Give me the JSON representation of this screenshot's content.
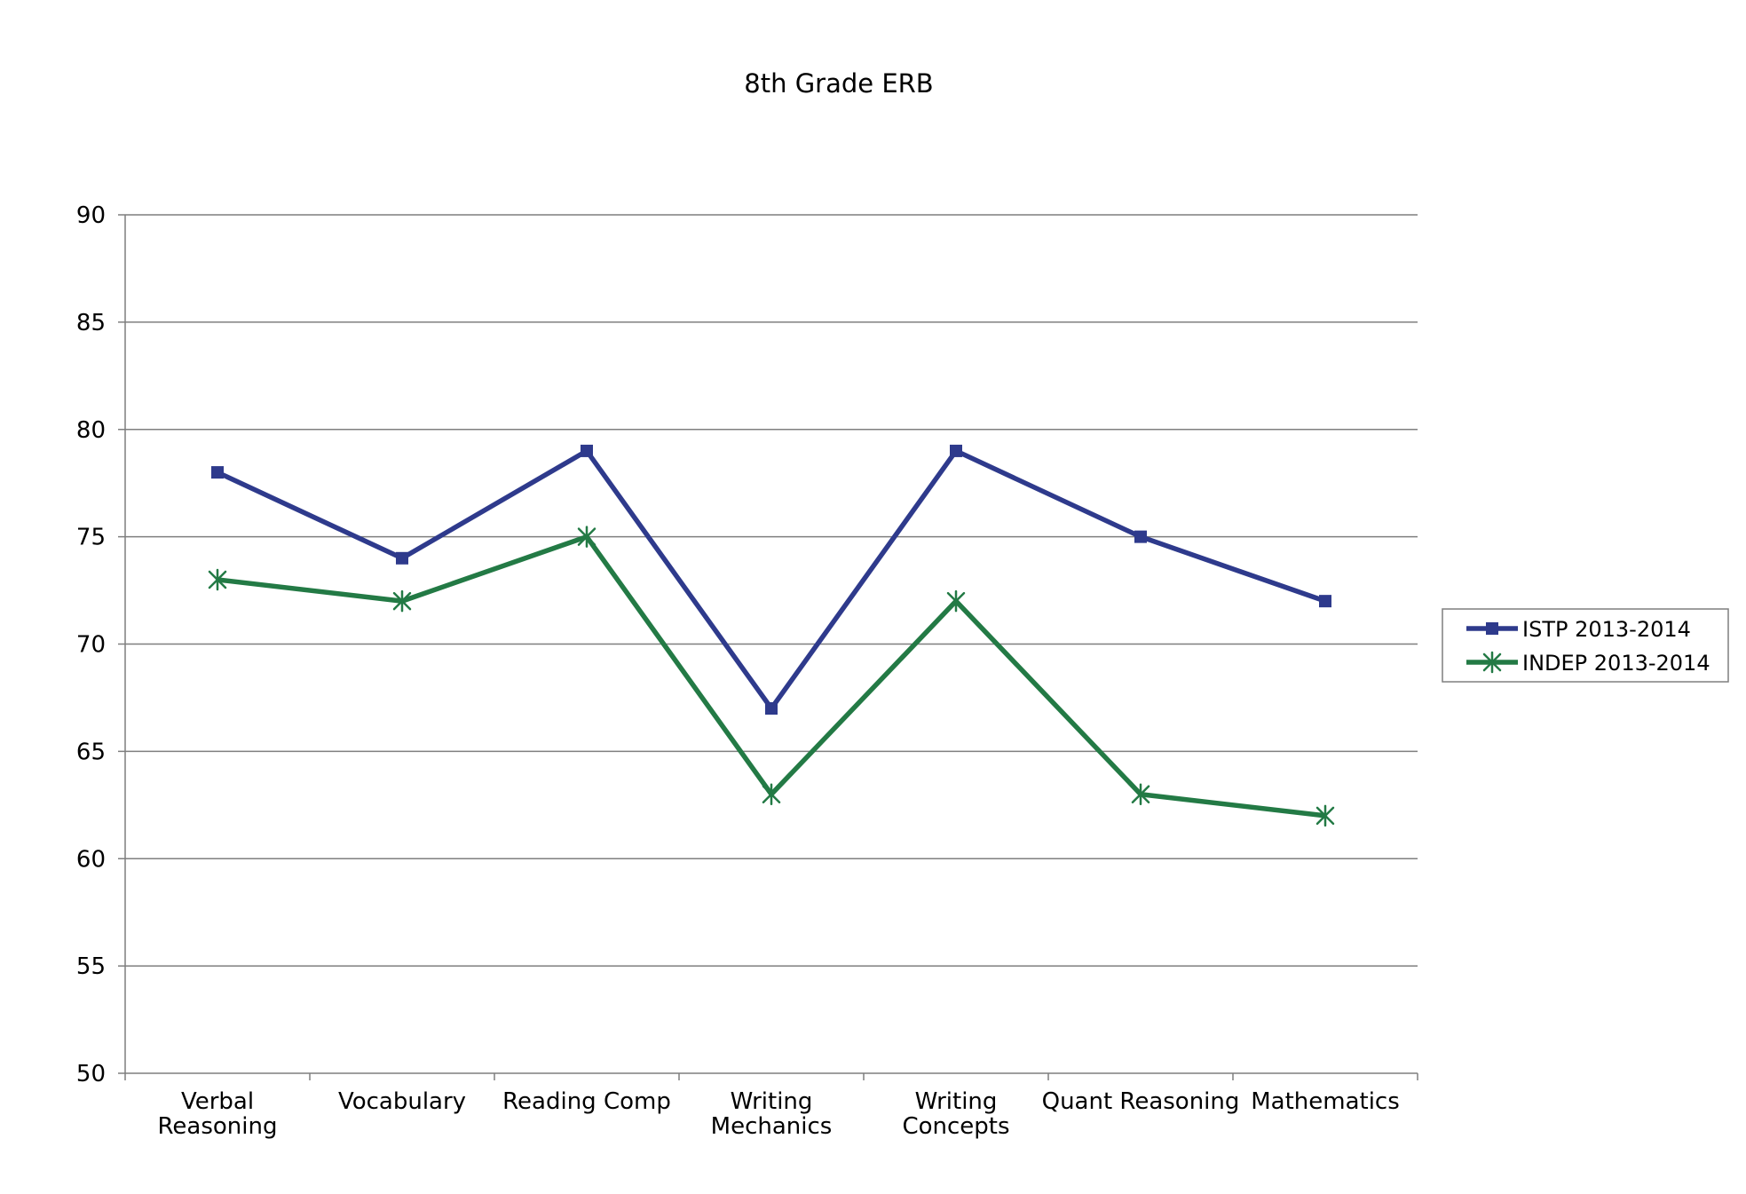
{
  "chart_data": {
    "type": "line",
    "title": "8th Grade ERB",
    "xlabel": "",
    "ylabel": "",
    "categories": [
      [
        "Verbal",
        "Reasoning"
      ],
      [
        "Vocabulary"
      ],
      [
        "Reading Comp"
      ],
      [
        "Writing",
        "Mechanics"
      ],
      [
        "Writing",
        "Concepts"
      ],
      [
        "Quant Reasoning"
      ],
      [
        "Mathematics"
      ]
    ],
    "ylim": [
      50,
      90
    ],
    "yticks": [
      "50",
      "55",
      "60",
      "65",
      "70",
      "75",
      "80",
      "85",
      "90"
    ],
    "grid": true,
    "legend_position": "right",
    "series": [
      {
        "name": "ISTP 2013-2014",
        "color": "#2e3a8c",
        "marker": "square",
        "values": [
          78,
          74,
          79,
          67,
          79,
          75,
          72
        ]
      },
      {
        "name": "INDEP 2013-2014",
        "color": "#237a45",
        "marker": "star",
        "values": [
          73,
          72,
          75,
          63,
          72,
          63,
          62
        ]
      }
    ]
  }
}
